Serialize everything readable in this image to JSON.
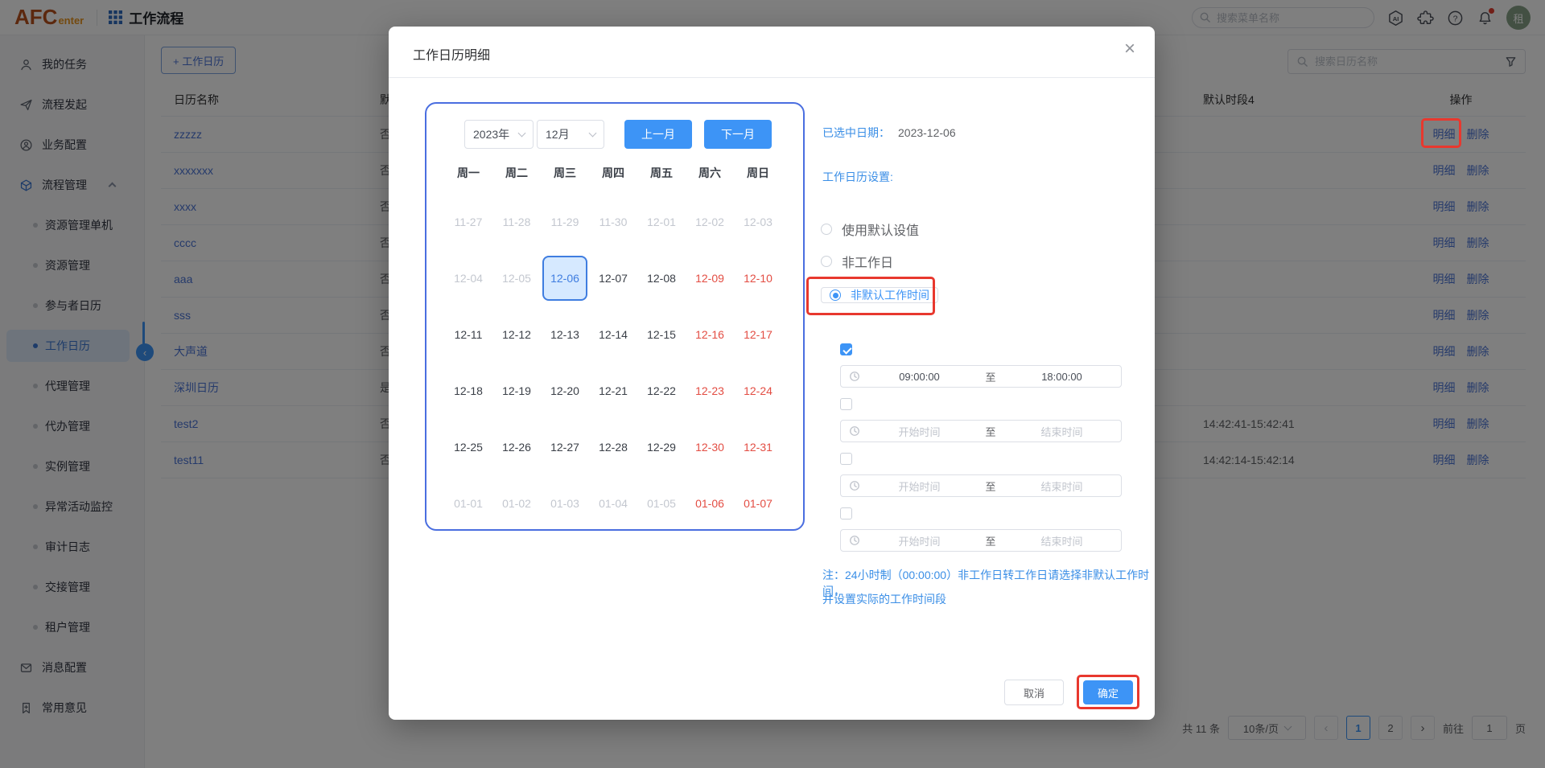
{
  "header": {
    "logo_main": "AFC",
    "logo_sub": "enter",
    "app_title": "工作流程",
    "search_placeholder": "搜索菜单名称",
    "avatar_text": "租",
    "icons": [
      "ai-icon",
      "plugin-icon",
      "help-icon",
      "bell-icon"
    ]
  },
  "sidebar": {
    "items": [
      {
        "label": "我的任务",
        "icon": "user-icon",
        "level": 1
      },
      {
        "label": "流程发起",
        "icon": "send-icon",
        "level": 1
      },
      {
        "label": "业务配置",
        "icon": "user-circle-icon",
        "level": 1
      },
      {
        "label": "流程管理",
        "icon": "cube-icon",
        "level": 1,
        "expanded": true
      },
      {
        "label": "资源管理单机",
        "level": 2
      },
      {
        "label": "资源管理",
        "level": 2
      },
      {
        "label": "参与者日历",
        "level": 2
      },
      {
        "label": "工作日历",
        "level": 2,
        "active": true
      },
      {
        "label": "代理管理",
        "level": 2
      },
      {
        "label": "代办管理",
        "level": 2
      },
      {
        "label": "实例管理",
        "level": 2
      },
      {
        "label": "异常活动监控",
        "level": 2
      },
      {
        "label": "审计日志",
        "level": 2
      },
      {
        "label": "交接管理",
        "level": 2
      },
      {
        "label": "租户管理",
        "level": 2
      },
      {
        "label": "消息配置",
        "icon": "mail-icon",
        "level": 1
      },
      {
        "label": "常用意见",
        "icon": "bookmark-icon",
        "level": 1
      }
    ]
  },
  "toolbar": {
    "add_button": "+ 工作日历",
    "search_placeholder": "搜索日历名称"
  },
  "table": {
    "columns": [
      "日历名称",
      "默",
      "默认时段4",
      "操作"
    ],
    "action_labels": [
      "明细",
      "删除"
    ],
    "rows": [
      {
        "name": "zzzzz",
        "flag": "否",
        "slot4": ""
      },
      {
        "name": "xxxxxxx",
        "flag": "否",
        "slot4": ""
      },
      {
        "name": "xxxx",
        "flag": "否",
        "slot4": ""
      },
      {
        "name": "cccc",
        "flag": "否",
        "slot4": ""
      },
      {
        "name": "aaa",
        "flag": "否",
        "slot4": ""
      },
      {
        "name": "sss",
        "flag": "否",
        "slot4": ""
      },
      {
        "name": "大声道",
        "flag": "否",
        "slot4": ""
      },
      {
        "name": "深圳日历",
        "flag": "是",
        "slot4": ""
      },
      {
        "name": "test2",
        "flag": "否",
        "slot4": "14:42:41-15:42:41"
      },
      {
        "name": "test11",
        "flag": "否",
        "slot4": "14:42:14-15:42:14"
      }
    ]
  },
  "pagination": {
    "total": "共 11 条",
    "page_size": "10条/页",
    "pages": [
      {
        "label": "1",
        "active": true
      },
      {
        "label": "2",
        "active": false
      }
    ],
    "goto_label": "前往",
    "goto_value": "1",
    "goto_suffix": "页"
  },
  "modal": {
    "title": "工作日历明细",
    "calendar": {
      "year": "2023年",
      "month": "12月",
      "prev_label": "上一月",
      "next_label": "下一月",
      "weekdays": [
        "周一",
        "周二",
        "周三",
        "周四",
        "周五",
        "周六",
        "周日"
      ],
      "weeks": [
        [
          {
            "d": "11-27",
            "t": "m"
          },
          {
            "d": "11-28",
            "t": "m"
          },
          {
            "d": "11-29",
            "t": "m"
          },
          {
            "d": "11-30",
            "t": "m"
          },
          {
            "d": "12-01",
            "t": "m"
          },
          {
            "d": "12-02",
            "t": "m"
          },
          {
            "d": "12-03",
            "t": "m"
          }
        ],
        [
          {
            "d": "12-04",
            "t": "m"
          },
          {
            "d": "12-05",
            "t": "m"
          },
          {
            "d": "12-06",
            "t": "s"
          },
          {
            "d": "12-07",
            "t": "n"
          },
          {
            "d": "12-08",
            "t": "n"
          },
          {
            "d": "12-09",
            "t": "w"
          },
          {
            "d": "12-10",
            "t": "w"
          }
        ],
        [
          {
            "d": "12-11",
            "t": "n"
          },
          {
            "d": "12-12",
            "t": "n"
          },
          {
            "d": "12-13",
            "t": "n"
          },
          {
            "d": "12-14",
            "t": "n"
          },
          {
            "d": "12-15",
            "t": "n"
          },
          {
            "d": "12-16",
            "t": "w"
          },
          {
            "d": "12-17",
            "t": "w"
          }
        ],
        [
          {
            "d": "12-18",
            "t": "n"
          },
          {
            "d": "12-19",
            "t": "n"
          },
          {
            "d": "12-20",
            "t": "n"
          },
          {
            "d": "12-21",
            "t": "n"
          },
          {
            "d": "12-22",
            "t": "n"
          },
          {
            "d": "12-23",
            "t": "w"
          },
          {
            "d": "12-24",
            "t": "w"
          }
        ],
        [
          {
            "d": "12-25",
            "t": "n"
          },
          {
            "d": "12-26",
            "t": "n"
          },
          {
            "d": "12-27",
            "t": "n"
          },
          {
            "d": "12-28",
            "t": "n"
          },
          {
            "d": "12-29",
            "t": "n"
          },
          {
            "d": "12-30",
            "t": "w"
          },
          {
            "d": "12-31",
            "t": "w"
          }
        ],
        [
          {
            "d": "01-01",
            "t": "m"
          },
          {
            "d": "01-02",
            "t": "m"
          },
          {
            "d": "01-03",
            "t": "m"
          },
          {
            "d": "01-04",
            "t": "m"
          },
          {
            "d": "01-05",
            "t": "m"
          },
          {
            "d": "01-06",
            "t": "w"
          },
          {
            "d": "01-07",
            "t": "w"
          }
        ]
      ]
    },
    "panel": {
      "selected_date_label": "已选中日期：",
      "selected_date_value": "2023-12-06",
      "settings_label": "工作日历设置:",
      "radios": [
        {
          "label": "使用默认设值",
          "selected": false
        },
        {
          "label": "非工作日",
          "selected": false
        },
        {
          "label": "非默认工作时间",
          "selected": true
        }
      ],
      "to_label": "至",
      "time_rows": [
        {
          "checked": true,
          "start": "09:00:00",
          "end": "18:00:00",
          "placeholder": false
        },
        {
          "checked": false,
          "start": "开始时间",
          "end": "结束时间",
          "placeholder": true
        },
        {
          "checked": false,
          "start": "开始时间",
          "end": "结束时间",
          "placeholder": true
        },
        {
          "checked": false,
          "start": "开始时间",
          "end": "结束时间",
          "placeholder": true
        }
      ],
      "note_line1": "注：24小时制（00:00:00）非工作日转工作日请选择非默认工作时间，",
      "note_line2": "并设置实际的工作时间段"
    },
    "footer": {
      "cancel": "取消",
      "confirm": "确定"
    }
  },
  "colors": {
    "primary": "#3d94f6",
    "annotation_red": "#e8382e",
    "weekend_red": "#e34d43",
    "selected_date_blue": "#3f7de0"
  }
}
